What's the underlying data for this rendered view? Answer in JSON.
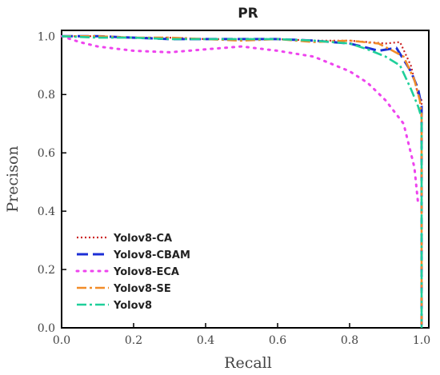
{
  "chart_data": {
    "type": "line",
    "title": "PR",
    "xlabel": "Recall",
    "ylabel": "Precison",
    "xlim": [
      0,
      1.02
    ],
    "ylim": [
      0,
      1.02
    ],
    "xticks": [
      0.0,
      0.2,
      0.4,
      0.6,
      0.8,
      1.0
    ],
    "yticks": [
      0.0,
      0.2,
      0.4,
      0.6,
      0.8,
      1.0
    ],
    "xtick_labels": [
      "0.0",
      "0.2",
      "0.4",
      "0.6",
      "0.8",
      "1.0"
    ],
    "ytick_labels": [
      "0.0",
      "0.2",
      "0.4",
      "0.6",
      "0.8",
      "1.0"
    ],
    "grid": false,
    "legend_position": "lower-left",
    "series": [
      {
        "name": "Yolov8-CA",
        "color": "#cc2222",
        "dash": "dotted",
        "points": [
          [
            0,
            1.0
          ],
          [
            0.1,
            1.0
          ],
          [
            0.2,
            0.995
          ],
          [
            0.3,
            0.995
          ],
          [
            0.4,
            0.99
          ],
          [
            0.5,
            0.99
          ],
          [
            0.6,
            0.99
          ],
          [
            0.7,
            0.985
          ],
          [
            0.8,
            0.985
          ],
          [
            0.85,
            0.98
          ],
          [
            0.9,
            0.975
          ],
          [
            0.94,
            0.98
          ],
          [
            0.97,
            0.9
          ],
          [
            0.99,
            0.8
          ],
          [
            1.0,
            0.78
          ],
          [
            1.0,
            0.0
          ]
        ]
      },
      {
        "name": "Yolov8-CBAM",
        "color": "#1c2fd6",
        "dash": "dash",
        "points": [
          [
            0,
            1.0
          ],
          [
            0.1,
            1.0
          ],
          [
            0.2,
            0.995
          ],
          [
            0.3,
            0.99
          ],
          [
            0.4,
            0.99
          ],
          [
            0.5,
            0.99
          ],
          [
            0.6,
            0.99
          ],
          [
            0.7,
            0.985
          ],
          [
            0.8,
            0.975
          ],
          [
            0.85,
            0.96
          ],
          [
            0.88,
            0.95
          ],
          [
            0.93,
            0.96
          ],
          [
            0.97,
            0.88
          ],
          [
            0.99,
            0.82
          ],
          [
            1.0,
            0.76
          ],
          [
            1.0,
            0.0
          ]
        ]
      },
      {
        "name": "Yolov8-ECA",
        "color": "#ee44ee",
        "dash": "dot-sparse",
        "points": [
          [
            0,
            1.0
          ],
          [
            0.05,
            0.98
          ],
          [
            0.1,
            0.965
          ],
          [
            0.2,
            0.95
          ],
          [
            0.3,
            0.945
          ],
          [
            0.4,
            0.955
          ],
          [
            0.5,
            0.965
          ],
          [
            0.6,
            0.95
          ],
          [
            0.7,
            0.93
          ],
          [
            0.8,
            0.88
          ],
          [
            0.85,
            0.84
          ],
          [
            0.9,
            0.78
          ],
          [
            0.95,
            0.7
          ],
          [
            0.98,
            0.55
          ],
          [
            0.99,
            0.43
          ]
        ]
      },
      {
        "name": "Yolov8-SE",
        "color": "#f28c28",
        "dash": "dash-dot",
        "points": [
          [
            0,
            1.0
          ],
          [
            0.1,
            1.0
          ],
          [
            0.2,
            0.995
          ],
          [
            0.3,
            0.995
          ],
          [
            0.4,
            0.99
          ],
          [
            0.5,
            0.985
          ],
          [
            0.6,
            0.99
          ],
          [
            0.7,
            0.98
          ],
          [
            0.8,
            0.985
          ],
          [
            0.88,
            0.975
          ],
          [
            0.92,
            0.95
          ],
          [
            0.95,
            0.93
          ],
          [
            0.98,
            0.85
          ],
          [
            0.995,
            0.78
          ],
          [
            1.0,
            0.73
          ],
          [
            1.0,
            0.0
          ]
        ]
      },
      {
        "name": "Yolov8",
        "color": "#1fcf9a",
        "dash": "dash-dot",
        "points": [
          [
            0,
            1.0
          ],
          [
            0.1,
            0.995
          ],
          [
            0.2,
            0.995
          ],
          [
            0.3,
            0.99
          ],
          [
            0.4,
            0.99
          ],
          [
            0.5,
            0.99
          ],
          [
            0.6,
            0.99
          ],
          [
            0.7,
            0.985
          ],
          [
            0.8,
            0.975
          ],
          [
            0.85,
            0.955
          ],
          [
            0.9,
            0.93
          ],
          [
            0.94,
            0.9
          ],
          [
            0.97,
            0.82
          ],
          [
            0.99,
            0.76
          ],
          [
            1.0,
            0.72
          ],
          [
            1.0,
            0.0
          ]
        ]
      }
    ]
  }
}
